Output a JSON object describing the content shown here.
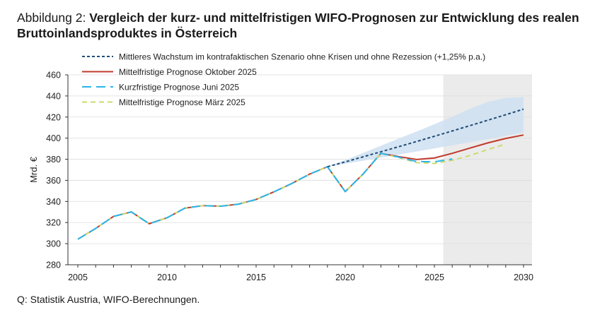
{
  "header": {
    "figure_label": "Abbildung 2:",
    "title": "Vergleich der kurz- und mittelfristigen WIFO-Prognosen zur Entwicklung des realen Bruttoinlandsproduktes in Österreich"
  },
  "source_note": "Q: Statistik Austria, WIFO-Berechnungen.",
  "colors": {
    "trend": "#1f4e79",
    "october": "#c0392b",
    "june": "#2bb5e8",
    "march": "#c9dc6e",
    "band": "#cfe0f1",
    "forecast_shade": "#ebebeb",
    "grid": "#dddddd"
  },
  "chart_data": {
    "type": "line",
    "ylabel": "Mrd. €",
    "xlabel": "",
    "xlim": [
      2005,
      2030
    ],
    "ylim": [
      280,
      460
    ],
    "yticks": [
      280,
      300,
      320,
      340,
      360,
      380,
      400,
      420,
      440,
      460
    ],
    "xticks": [
      2005,
      2010,
      2015,
      2020,
      2025,
      2030
    ],
    "forecast_shade_from": 2025.5,
    "legend_position": "top-left",
    "series": [
      {
        "key": "trend",
        "name": "Mittleres Wachstum im kontrafaktischen Szenario ohne Krisen und ohne Rezession (+1,25% p.a.)",
        "style": "dotted",
        "x": [
          2019,
          2020,
          2021,
          2022,
          2023,
          2024,
          2025,
          2026,
          2027,
          2028,
          2029,
          2030
        ],
        "y": [
          372.9,
          377.5,
          382.3,
          387.1,
          391.9,
          396.8,
          401.8,
          406.8,
          411.9,
          417.0,
          422.2,
          427.5
        ],
        "band_lower": [
          372.9,
          375.8,
          378.6,
          381.5,
          384.4,
          387.3,
          390.2,
          393.2,
          396.1,
          399.1,
          402.2,
          405.2
        ],
        "band_upper": [
          372.9,
          379.2,
          386.0,
          392.8,
          399.6,
          406.3,
          413.2,
          420.3,
          427.9,
          434.3,
          438.2,
          439.0
        ]
      },
      {
        "key": "october",
        "name": "Mittelfristige Prognose Oktober 2025",
        "style": "solid",
        "x": [
          2005,
          2006,
          2007,
          2008,
          2009,
          2010,
          2011,
          2012,
          2013,
          2014,
          2015,
          2016,
          2017,
          2018,
          2019,
          2020,
          2021,
          2022,
          2023,
          2024,
          2025,
          2026,
          2027,
          2028,
          2029,
          2030
        ],
        "y": [
          304.2,
          314.4,
          325.8,
          330.1,
          318.9,
          324.5,
          333.6,
          336.0,
          335.5,
          337.4,
          341.9,
          349.1,
          357.0,
          365.9,
          372.9,
          349.3,
          366.0,
          385.6,
          382.5,
          379.8,
          381.2,
          385.6,
          390.6,
          395.5,
          399.7,
          403.0
        ]
      },
      {
        "key": "june",
        "name": "Kurzfristige Prognose Juni 2025",
        "style": "long-dash",
        "x": [
          2005,
          2006,
          2007,
          2008,
          2009,
          2010,
          2011,
          2012,
          2013,
          2014,
          2015,
          2016,
          2017,
          2018,
          2019,
          2020,
          2021,
          2022,
          2023,
          2024,
          2025,
          2026
        ],
        "y": [
          304.2,
          314.4,
          325.8,
          330.1,
          318.9,
          324.5,
          333.6,
          336.0,
          335.5,
          337.4,
          341.9,
          349.1,
          357.0,
          365.9,
          372.9,
          349.3,
          366.0,
          385.6,
          382.0,
          377.8,
          377.6,
          380.2
        ]
      },
      {
        "key": "march",
        "name": "Mittelfristige Prognose März 2025",
        "style": "dash",
        "x": [
          2005,
          2006,
          2007,
          2008,
          2009,
          2010,
          2011,
          2012,
          2013,
          2014,
          2015,
          2016,
          2017,
          2018,
          2019,
          2020,
          2021,
          2022,
          2023,
          2024,
          2025,
          2026,
          2027,
          2028,
          2029
        ],
        "y": [
          304.2,
          314.4,
          325.8,
          330.1,
          318.9,
          324.5,
          333.6,
          336.0,
          335.5,
          337.4,
          341.9,
          349.1,
          357.0,
          365.9,
          372.9,
          349.3,
          366.0,
          385.6,
          381.7,
          376.8,
          376.0,
          379.0,
          383.6,
          389.2,
          394.4
        ]
      }
    ]
  }
}
